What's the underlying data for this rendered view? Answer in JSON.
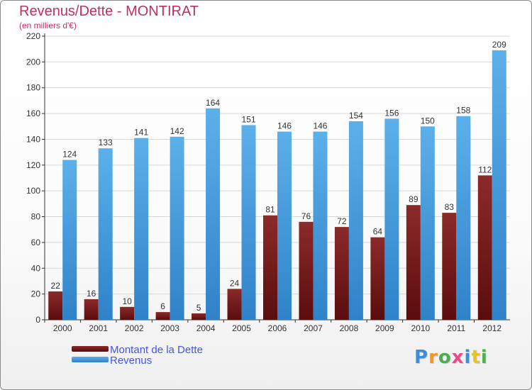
{
  "title": "Revenus/Dette - MONTIRAT",
  "subtitle": "(en milliers d'€)",
  "logo": "Proxiti",
  "colors": {
    "title": "#c0305a",
    "debt": "#7a1c1c",
    "revenue": "#4ea3e0",
    "axis": "#333333",
    "grid": "#d8d8d8",
    "legend_text": "#4455ee"
  },
  "chart_data": {
    "type": "bar",
    "title": "Revenus/Dette - MONTIRAT",
    "subtitle": "(en milliers d'€)",
    "categories": [
      "2000",
      "2001",
      "2002",
      "2003",
      "2004",
      "2005",
      "2006",
      "2007",
      "2008",
      "2009",
      "2010",
      "2011",
      "2012"
    ],
    "series": [
      {
        "name": "Montant de la Dette",
        "values": [
          22,
          16,
          10,
          6,
          5,
          24,
          81,
          76,
          72,
          64,
          89,
          83,
          112
        ]
      },
      {
        "name": "Revenus",
        "values": [
          124,
          133,
          141,
          142,
          164,
          151,
          146,
          146,
          154,
          156,
          150,
          158,
          209
        ]
      }
    ],
    "ylim": [
      0,
      220
    ],
    "yticks": [
      0,
      20,
      40,
      60,
      80,
      100,
      120,
      140,
      160,
      180,
      200,
      220
    ],
    "grid": true,
    "legend_position": "bottom-left"
  }
}
